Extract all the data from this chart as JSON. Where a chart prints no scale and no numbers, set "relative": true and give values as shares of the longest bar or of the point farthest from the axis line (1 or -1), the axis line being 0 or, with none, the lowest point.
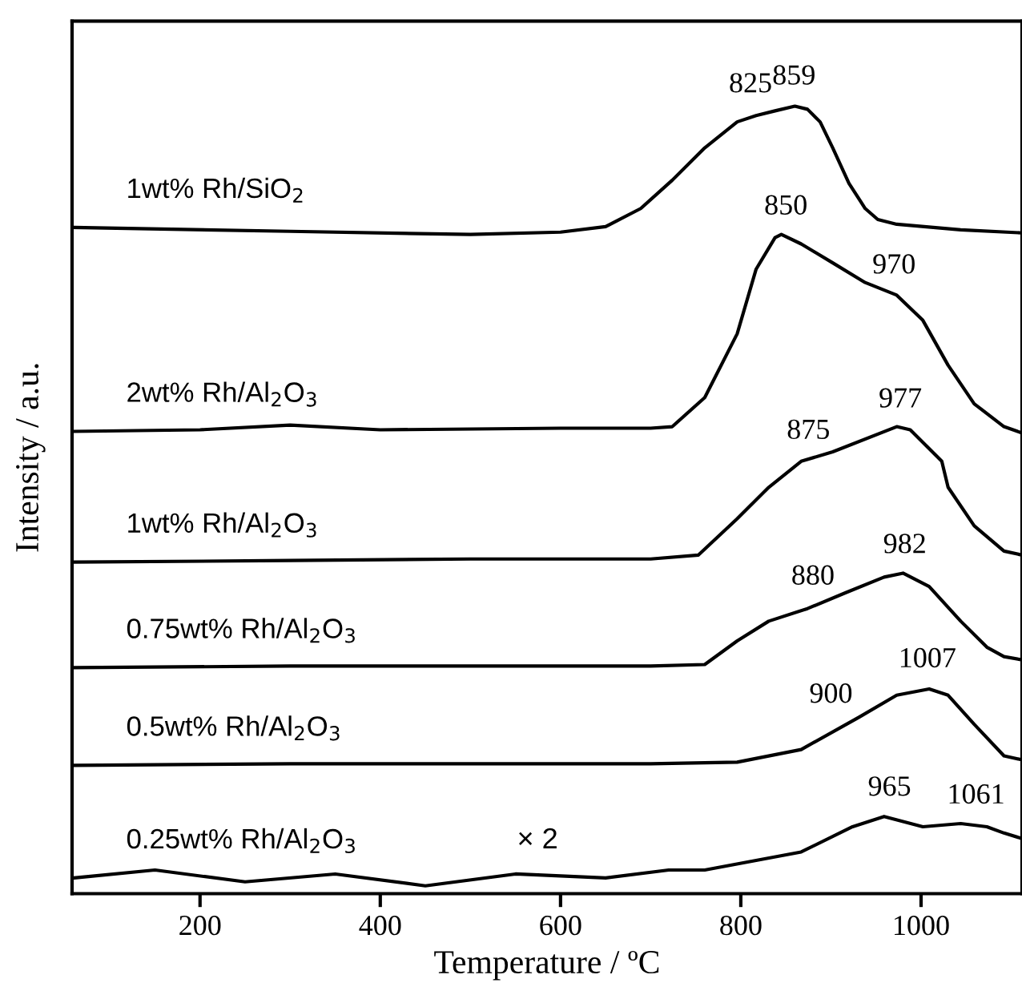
{
  "chart_data": {
    "type": "line",
    "relative": true,
    "xlabel": "Temperature / ºC",
    "ylabel": "Intensity / a.u.",
    "xlim": [
      58,
      1112
    ],
    "xticks": [
      200,
      400,
      600,
      800,
      1000
    ],
    "tick_labels": "x",
    "grid": false,
    "legend": false,
    "marker": "none",
    "line_style": "solid",
    "series": [
      {
        "name": "1wt% Rh/SiO$_{2}$",
        "color": "#000000",
        "x": [
          60,
          300,
          500,
          600,
          650,
          689,
          724,
          760,
          796,
          817,
          838,
          860,
          874,
          888,
          902,
          920,
          938,
          952,
          973,
          1044,
          1112
        ],
        "values": [
          0.846,
          0.841,
          0.837,
          0.84,
          0.847,
          0.87,
          0.906,
          0.947,
          0.98,
          0.988,
          0.994,
          1.0,
          0.996,
          0.98,
          0.947,
          0.902,
          0.87,
          0.856,
          0.85,
          0.843,
          0.839
        ]
      },
      {
        "name": "2wt% Rh/Al$_{2}$O$_{3}$",
        "color": "#000000",
        "x": [
          60,
          200,
          300,
          400,
          600,
          700,
          724,
          760,
          796,
          817,
          838,
          845,
          867,
          902,
          938,
          973,
          1002,
          1030,
          1059,
          1092,
          1112
        ],
        "values": [
          0.587,
          0.589,
          0.595,
          0.589,
          0.591,
          0.591,
          0.593,
          0.63,
          0.711,
          0.793,
          0.833,
          0.837,
          0.825,
          0.801,
          0.776,
          0.76,
          0.728,
          0.671,
          0.622,
          0.593,
          0.585
        ]
      },
      {
        "name": "1wt% Rh/Al$_{2}$O$_{3}$",
        "color": "#000000",
        "x": [
          60,
          300,
          500,
          700,
          753,
          796,
          831,
          867,
          902,
          973,
          988,
          1023,
          1030,
          1059,
          1092,
          1112
        ],
        "values": [
          0.421,
          0.423,
          0.425,
          0.425,
          0.43,
          0.476,
          0.516,
          0.549,
          0.561,
          0.593,
          0.589,
          0.549,
          0.516,
          0.467,
          0.435,
          0.43
        ]
      },
      {
        "name": "0.75wt% Rh/Al$_{2}$O$_{3}$",
        "color": "#000000",
        "x": [
          60,
          300,
          500,
          700,
          760,
          796,
          831,
          874,
          916,
          959,
          980,
          1009,
          1044,
          1073,
          1092,
          1112
        ],
        "values": [
          0.287,
          0.289,
          0.289,
          0.289,
          0.291,
          0.321,
          0.346,
          0.362,
          0.382,
          0.402,
          0.407,
          0.39,
          0.346,
          0.313,
          0.301,
          0.297
        ]
      },
      {
        "name": "0.5wt% Rh/Al$_{2}$O$_{3}$",
        "color": "#000000",
        "x": [
          60,
          300,
          500,
          700,
          796,
          867,
          931,
          973,
          1009,
          1030,
          1059,
          1092,
          1112
        ],
        "values": [
          0.163,
          0.165,
          0.165,
          0.165,
          0.167,
          0.183,
          0.224,
          0.252,
          0.26,
          0.252,
          0.215,
          0.175,
          0.17
        ]
      },
      {
        "name": "0.25wt% Rh/Al$_{2}$O$_{3}$",
        "color": "#000000",
        "x": [
          60,
          150,
          250,
          350,
          450,
          550,
          650,
          720,
          760,
          867,
          924,
          959,
          1002,
          1044,
          1073,
          1092,
          1112
        ],
        "values": [
          0.02,
          0.03,
          0.015,
          0.025,
          0.01,
          0.025,
          0.02,
          0.03,
          0.03,
          0.053,
          0.085,
          0.098,
          0.085,
          0.089,
          0.085,
          0.077,
          0.07
        ]
      }
    ],
    "annotations": [
      {
        "text": "825",
        "x": 825,
        "y": 0.99
      },
      {
        "text": "859",
        "x": 859,
        "y": 1.0
      },
      {
        "text": "850",
        "x": 850,
        "y": 0.835
      },
      {
        "text": "970",
        "x": 970,
        "y": 0.76
      },
      {
        "text": "875",
        "x": 875,
        "y": 0.55
      },
      {
        "text": "977",
        "x": 977,
        "y": 0.59
      },
      {
        "text": "880",
        "x": 880,
        "y": 0.365
      },
      {
        "text": "982",
        "x": 982,
        "y": 0.405
      },
      {
        "text": "900",
        "x": 900,
        "y": 0.215
      },
      {
        "text": "1007",
        "x": 1007,
        "y": 0.26
      },
      {
        "text": "965",
        "x": 965,
        "y": 0.097
      },
      {
        "text": "1061",
        "x": 1061,
        "y": 0.087
      },
      "× 2"
    ]
  }
}
